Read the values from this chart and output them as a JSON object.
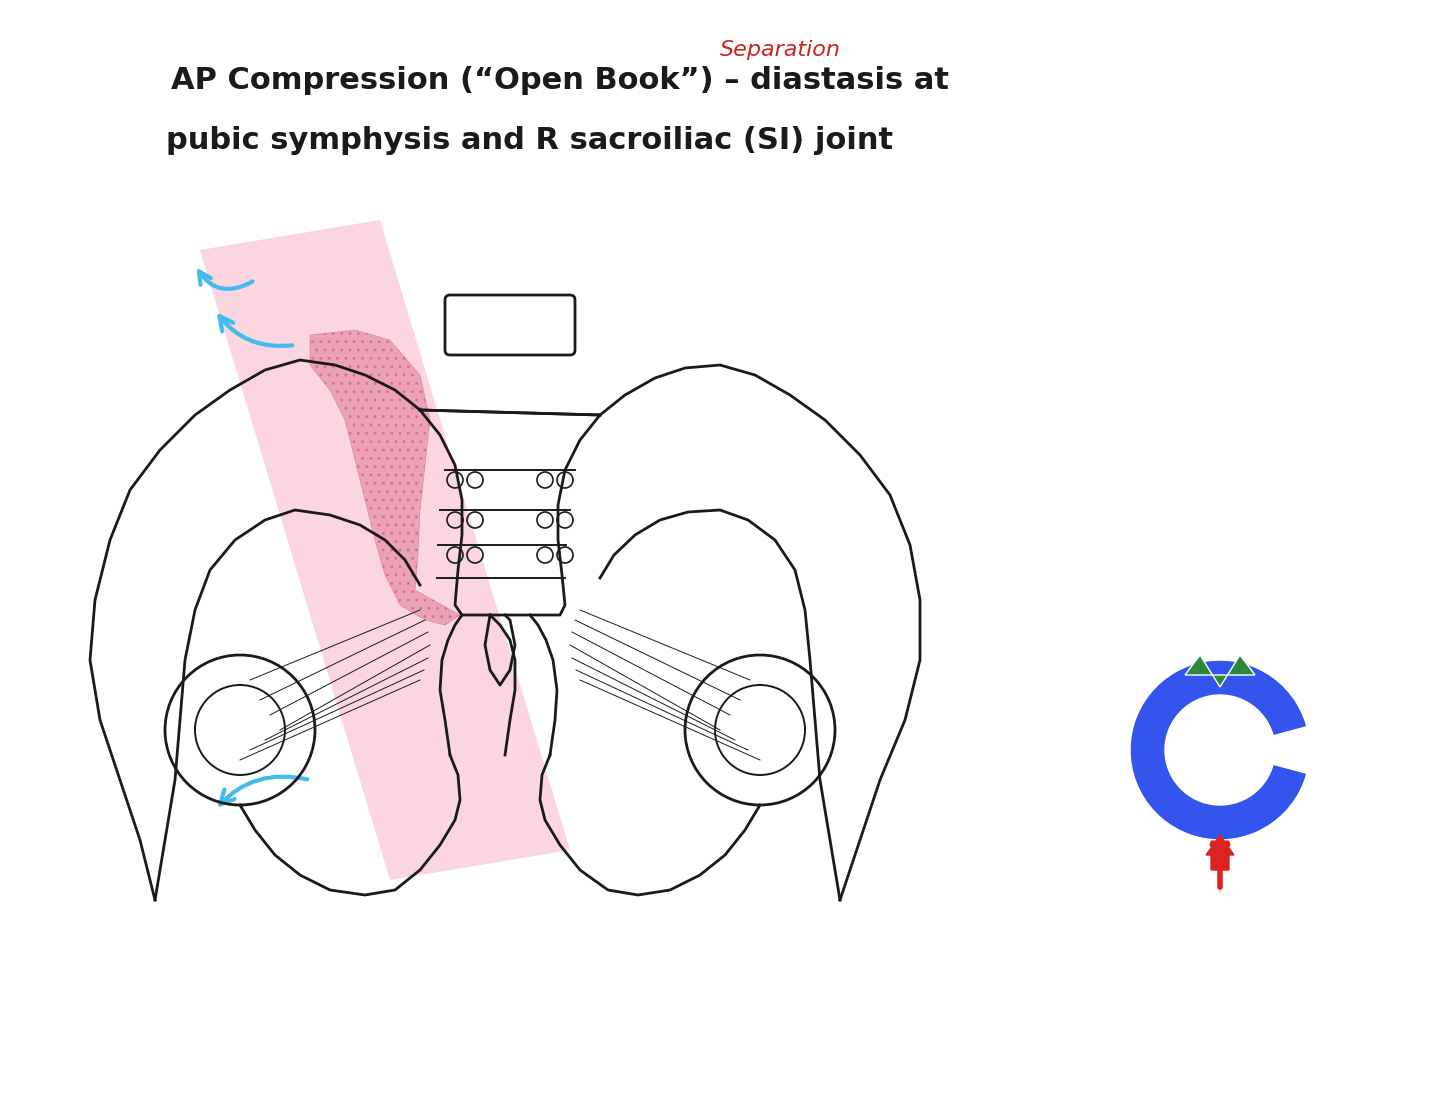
{
  "title_line1": "AP Compression (“Open Book”) – diastasis at",
  "title_line2": "pubic symphysis and R sacroiliac (SI) joint",
  "separation_text": "Separation",
  "title_fontsize": 22,
  "annotation_fontsize": 14,
  "bg_color": "#ffffff",
  "title_color": "#1a1a1a",
  "separation_color": "#cc2222",
  "pink_highlight_color": "#f8b4c8",
  "pink_hatch_color": "#e07090",
  "cyan_arrow_color": "#44bbee",
  "blue_ring_color": "#3355ee",
  "green_wedge_color": "#2a8a3a",
  "red_arrow_color": "#dd2222",
  "bone_color": "#1a1a1a",
  "bone_linewidth": 2.0
}
